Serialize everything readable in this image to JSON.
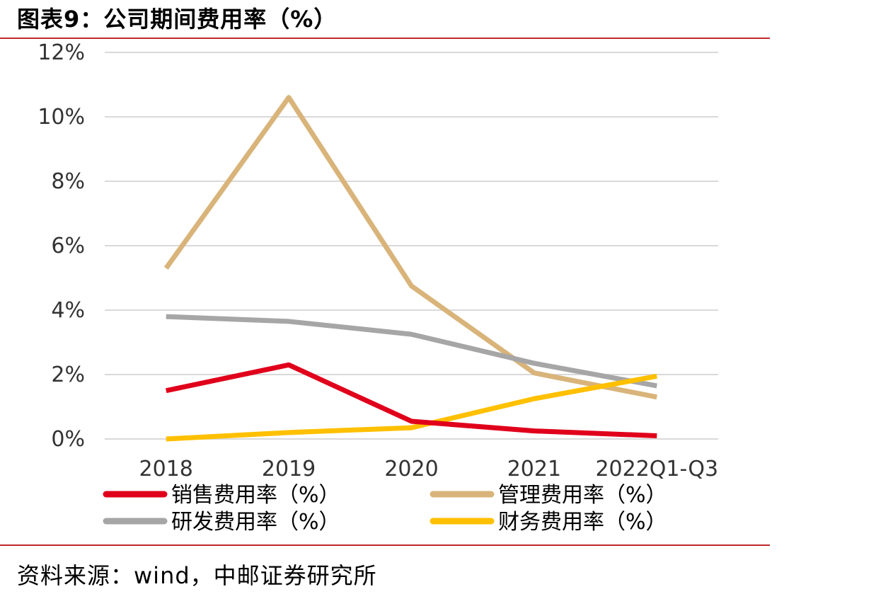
{
  "header": {
    "title": "图表9：公司期间费用率（%）"
  },
  "footer": {
    "source": "资料来源：wind，中邮证券研究所"
  },
  "chart_data": {
    "type": "line",
    "title": "图表9：公司期间费用率（%）",
    "xlabel": "",
    "ylabel": "",
    "categories": [
      "2018",
      "2019",
      "2020",
      "2021",
      "2022Q1-Q3"
    ],
    "ylim": [
      0,
      12
    ],
    "yticks": [
      "0%",
      "2%",
      "4%",
      "6%",
      "8%",
      "10%",
      "12%"
    ],
    "grid": true,
    "legend": "bottom",
    "series": [
      {
        "name": "销售费用率（%）",
        "color": "#e0001b",
        "values": [
          1.5,
          2.3,
          0.55,
          0.25,
          0.1
        ]
      },
      {
        "name": "管理费用率（%）",
        "color": "#d9b47a",
        "values": [
          5.3,
          10.6,
          4.75,
          2.05,
          1.3
        ]
      },
      {
        "name": "研发费用率（%）",
        "color": "#a6a6a6",
        "values": [
          3.8,
          3.65,
          3.25,
          2.35,
          1.65
        ]
      },
      {
        "name": "财务费用率（%）",
        "color": "#ffc000",
        "values": [
          0.0,
          0.2,
          0.35,
          1.25,
          1.95
        ]
      }
    ]
  }
}
